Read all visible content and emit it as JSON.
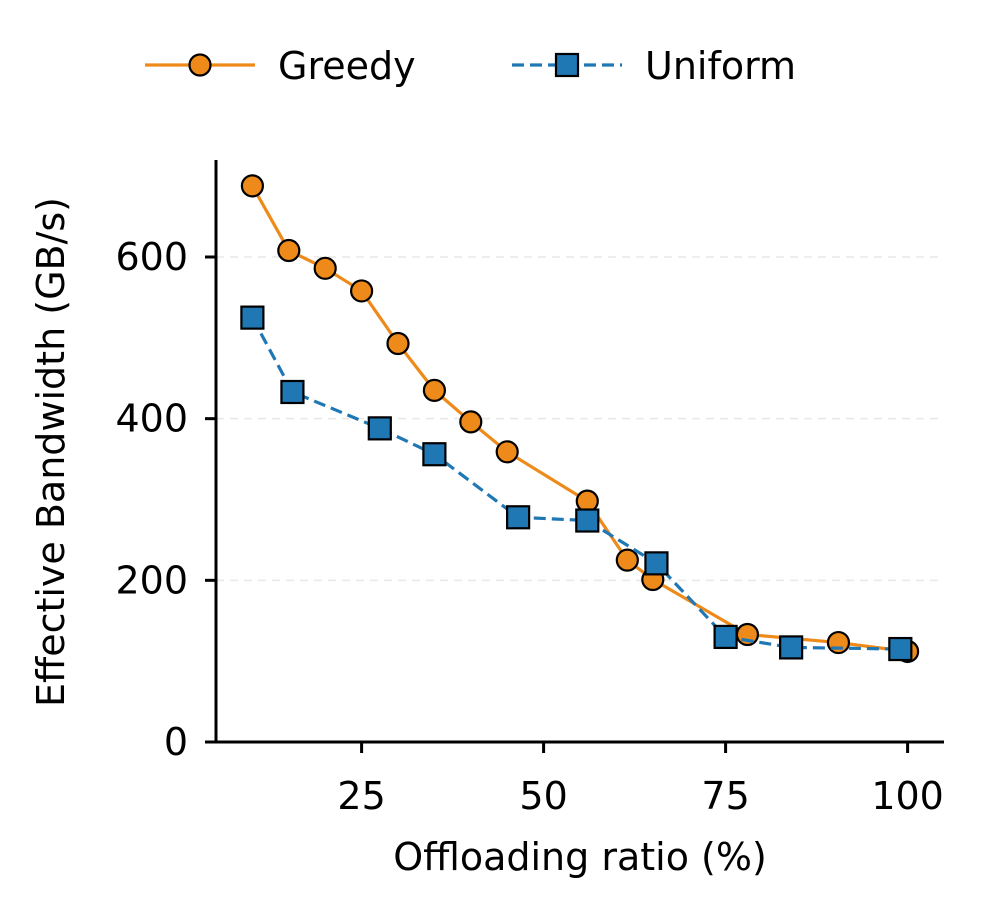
{
  "chart_data": {
    "type": "line",
    "xlabel": "Offloading ratio (%)",
    "ylabel": "Effective Bandwidth (GB/s)",
    "xlim": [
      5,
      105
    ],
    "ylim": [
      0,
      720
    ],
    "x_ticks": [
      25,
      50,
      75,
      100
    ],
    "y_ticks": [
      0,
      200,
      400,
      600
    ],
    "grid": "horizontal dashed",
    "legend": "top, above plot",
    "series": [
      {
        "name": "Greedy",
        "color": "#ee8a1a",
        "line_style": "solid",
        "marker": "circle",
        "x": [
          10,
          15,
          20,
          25,
          30,
          35,
          40,
          45,
          56,
          61.5,
          65,
          78,
          90.5,
          100
        ],
        "y": [
          688,
          608,
          586,
          558,
          493,
          435,
          396,
          359,
          298,
          225,
          201,
          133,
          123,
          112
        ]
      },
      {
        "name": "Uniform",
        "color": "#1f77b4",
        "line_style": "dashed",
        "marker": "square",
        "x": [
          10,
          15.5,
          27.5,
          35,
          46.5,
          56,
          65.5,
          75,
          84,
          99
        ],
        "y": [
          525,
          433,
          388,
          356,
          278,
          274,
          221,
          130,
          117,
          115
        ]
      }
    ]
  }
}
